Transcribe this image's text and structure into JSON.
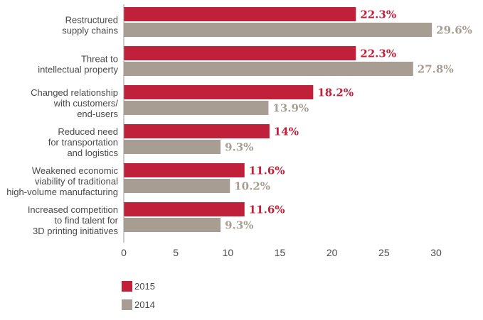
{
  "chart_data": {
    "type": "bar",
    "orientation": "horizontal",
    "categories": [
      [
        "Restructured",
        "supply chains"
      ],
      [
        "Threat to",
        "intellectual property"
      ],
      [
        "Changed relationship",
        "with customers/",
        "end-users"
      ],
      [
        "Reduced need",
        "for transportation",
        "and logistics"
      ],
      [
        "Weakened economic",
        "viability of traditional",
        "high-volume manufacturing"
      ],
      [
        "Increased competition",
        "to find talent for",
        "3D printing initiatives"
      ]
    ],
    "series": [
      {
        "name": "2015",
        "color": "#c0203a",
        "label_color": "#c0203a",
        "values": [
          22.3,
          22.3,
          18.2,
          14,
          11.6,
          11.6
        ],
        "labels": [
          "22.3%",
          "22.3%",
          "18.2%",
          "14%",
          "11.6%",
          "11.6%"
        ]
      },
      {
        "name": "2014",
        "color": "#a89d92",
        "label_color": "#a89d92",
        "values": [
          29.6,
          27.8,
          13.9,
          9.3,
          10.2,
          9.3
        ],
        "labels": [
          "29.6%",
          "27.8%",
          "13.9%",
          "9.3%",
          "10.2%",
          "9.3%"
        ]
      }
    ],
    "xlim": [
      0,
      30
    ],
    "xticks": [
      "0",
      "5",
      "10",
      "15",
      "20",
      "25",
      "30"
    ],
    "xlabel": "",
    "ylabel": "",
    "grid": false,
    "legend_position": "bottom-left"
  },
  "legend": [
    {
      "label": "2015",
      "color": "#c0203a"
    },
    {
      "label": "2014",
      "color": "#a89d92"
    }
  ]
}
